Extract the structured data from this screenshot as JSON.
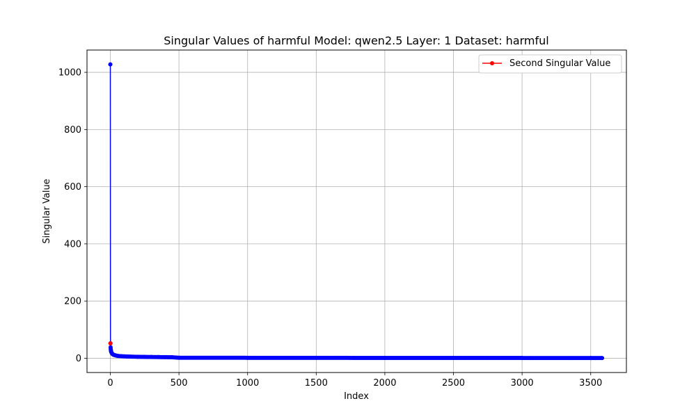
{
  "chart_data": {
    "type": "line",
    "title": "Singular Values of harmful Model: qwen2.5 Layer: 1 Dataset: harmful",
    "xlabel": "Index",
    "ylabel": "Singular Value",
    "xlim": [
      -170,
      3760
    ],
    "ylim": [
      -50,
      1078
    ],
    "xticks": [
      0,
      500,
      1000,
      1500,
      2000,
      2500,
      3000,
      3500
    ],
    "yticks": [
      0,
      200,
      400,
      600,
      800,
      1000
    ],
    "grid": true,
    "legend_position": "top-right",
    "series": [
      {
        "name": "",
        "color": "#0000ff",
        "marker": "circle",
        "x": [
          0,
          1,
          2,
          3,
          4,
          5,
          7,
          10,
          15,
          20,
          30,
          40,
          50,
          60,
          80,
          100,
          120,
          150,
          200,
          250,
          300,
          350,
          400,
          450,
          500,
          1000,
          1500,
          2000,
          2500,
          3000,
          3500,
          3583
        ],
        "y": [
          1028,
          52,
          38,
          32,
          28,
          25,
          21,
          18,
          15,
          13,
          11,
          9.5,
          8.5,
          7.8,
          7,
          6.5,
          6,
          5.5,
          5,
          4.6,
          4.3,
          4,
          3.7,
          3.4,
          1.8,
          1.5,
          1.3,
          1.1,
          1,
          0.9,
          0.8,
          0.7
        ]
      },
      {
        "name": "Second Singular Value",
        "color": "#ff0000",
        "marker": "circle",
        "x": [
          1
        ],
        "y": [
          52
        ]
      }
    ]
  }
}
